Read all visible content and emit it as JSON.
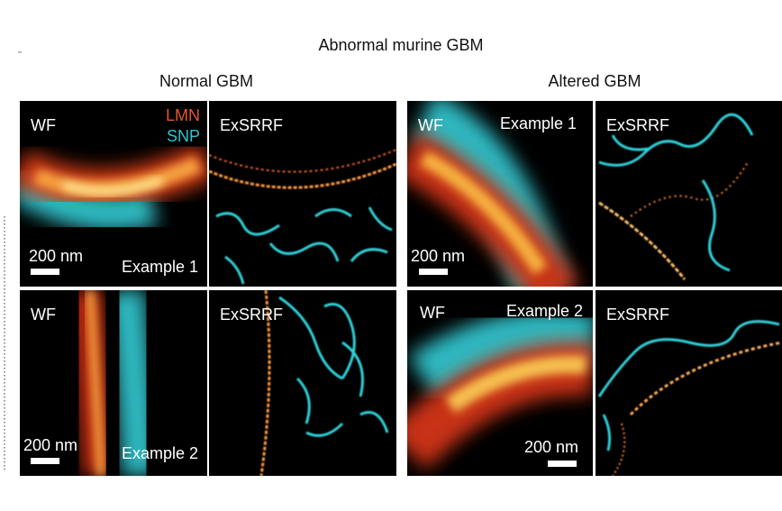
{
  "figure": {
    "title": "Abnormal murine GBM",
    "groups": [
      {
        "title": "Normal GBM",
        "panels": [
          {
            "label": "WF",
            "channels": [
              "LMN",
              "SNP"
            ],
            "scale_bar": "200 nm",
            "example": "Example 1"
          },
          {
            "label": "ExSRRF"
          },
          {
            "label": "WF",
            "scale_bar": "200 nm",
            "example": "Example 2"
          },
          {
            "label": "ExSRRF"
          }
        ]
      },
      {
        "title": "Altered GBM",
        "panels": [
          {
            "label": "WF",
            "example": "Example 1",
            "scale_bar": "200 nm"
          },
          {
            "label": "ExSRRF"
          },
          {
            "label": "WF",
            "example": "Example 2",
            "scale_bar": "200 nm"
          },
          {
            "label": "ExSRRF"
          }
        ]
      }
    ]
  }
}
